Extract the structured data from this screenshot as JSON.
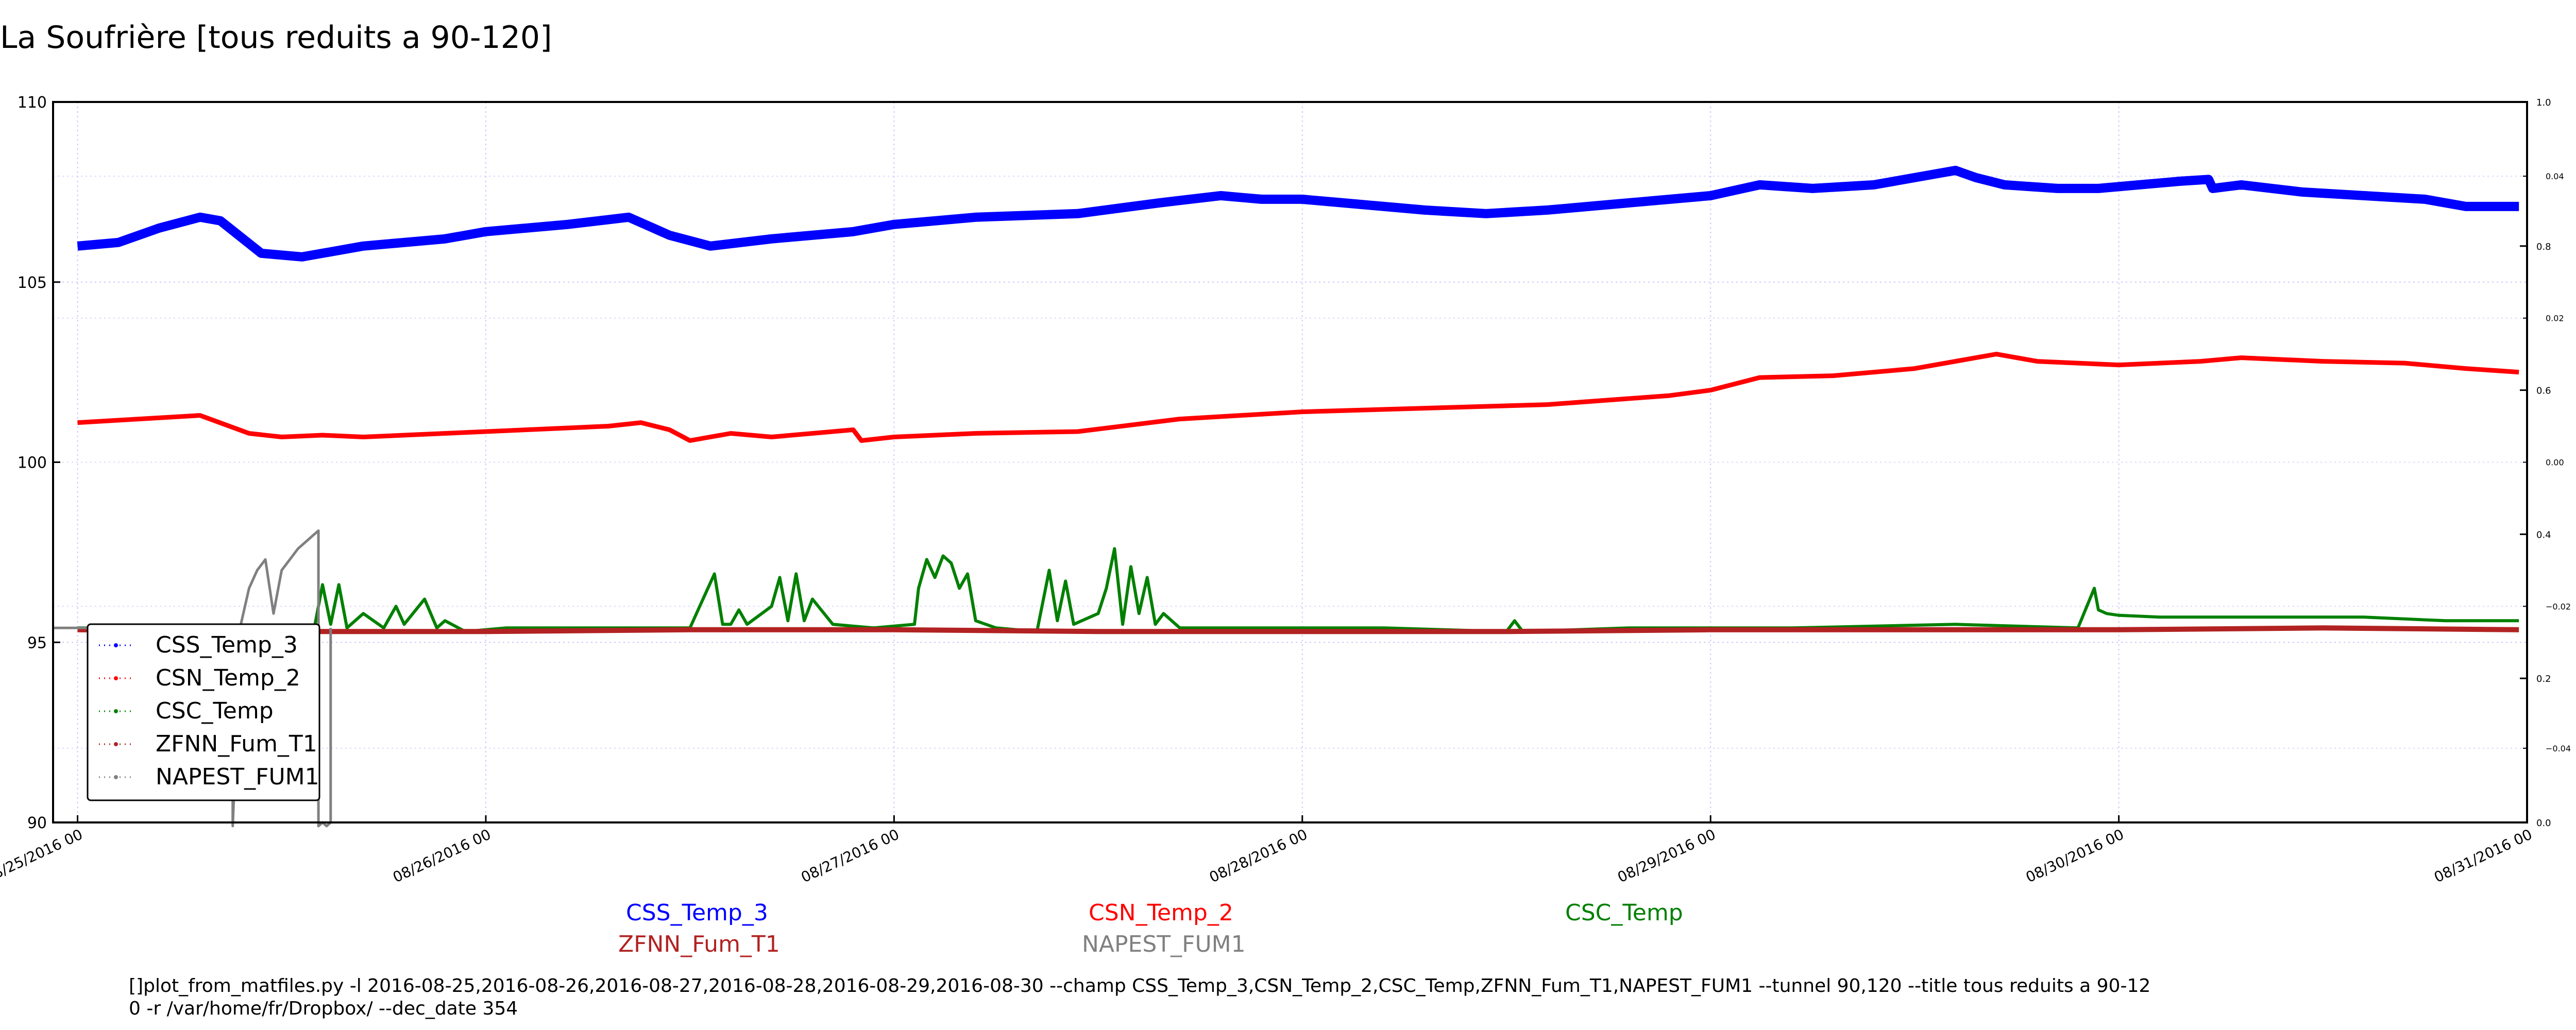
{
  "page": {
    "title": "La Soufrière [tous reduits a 90-120]",
    "command_line_1": "[]plot_from_matfiles.py -l 2016-08-25,2016-08-26,2016-08-27,2016-08-28,2016-08-29,2016-08-30 --champ CSS_Temp_3,CSN_Temp_2,CSC_Temp,ZFNN_Fum_T1,NAPEST_FUM1 --tunnel 90,120 --title tous reduits a 90-12",
    "command_line_2": "0 -r /var/home/fr/Dropbox/ --dec_date 354"
  },
  "bottom_legend": {
    "css": "CSS_Temp_3",
    "csn": "CSN_Temp_2",
    "csc": "CSC_Temp",
    "zfnn": "ZFNN_Fum_T1",
    "napest": "NAPEST_FUM1"
  },
  "chart_data": {
    "type": "line",
    "title": "La Soufrière [tous reduits a 90-120]",
    "xlabel": "",
    "ylabel": "",
    "x_unit": "days since 2016-08-25 00:00",
    "xlim": [
      -0.06,
      6.0
    ],
    "ylim": [
      90,
      110
    ],
    "y_ticks": [
      90,
      95,
      100,
      105,
      110
    ],
    "x_ticks": [
      {
        "x": 0,
        "label": "08/25/2016 00"
      },
      {
        "x": 1,
        "label": "08/26/2016 00"
      },
      {
        "x": 2,
        "label": "08/27/2016 00"
      },
      {
        "x": 3,
        "label": "08/28/2016 00"
      },
      {
        "x": 4,
        "label": "08/29/2016 00"
      },
      {
        "x": 5,
        "label": "08/30/2016 00"
      },
      {
        "x": 6,
        "label": "08/31/2016 00"
      }
    ],
    "right_axis": {
      "ylim": [
        0,
        1.0
      ],
      "major_ticks": [
        "0.0",
        "0.2",
        "0.4",
        "0.6",
        "0.8",
        "1.0"
      ],
      "minor_ticks": [
        {
          "v": 0.103,
          "label": "−0.04"
        },
        {
          "v": 0.3,
          "label": "−0.02"
        },
        {
          "v": 0.5,
          "label": "0.00"
        },
        {
          "v": 0.7,
          "label": "0.02"
        },
        {
          "v": 0.897,
          "label": "0.04"
        }
      ]
    },
    "grid": true,
    "legend": {
      "position": "lower-left",
      "entries": [
        "CSS_Temp_3",
        "CSN_Temp_2",
        "CSC_Temp",
        "ZFNN_Fum_T1",
        "NAPEST_FUM1"
      ]
    },
    "series": [
      {
        "name": "CSS_Temp_3",
        "color": "#0000ff",
        "width": 18,
        "x": [
          0.0,
          0.1,
          0.2,
          0.3,
          0.35,
          0.45,
          0.55,
          0.7,
          0.9,
          1.0,
          1.2,
          1.35,
          1.45,
          1.55,
          1.7,
          1.9,
          2.0,
          2.2,
          2.45,
          2.65,
          2.8,
          2.9,
          3.0,
          3.1,
          3.3,
          3.45,
          3.6,
          3.8,
          4.0,
          4.12,
          4.25,
          4.4,
          4.6,
          4.65,
          4.72,
          4.85,
          4.95,
          5.05,
          5.15,
          5.22,
          5.23,
          5.3,
          5.45,
          5.6,
          5.75,
          5.85,
          5.98
        ],
        "y": [
          106.0,
          106.1,
          106.5,
          106.8,
          106.7,
          105.8,
          105.7,
          106.0,
          106.2,
          106.4,
          106.6,
          106.8,
          106.3,
          106.0,
          106.2,
          106.4,
          106.6,
          106.8,
          106.9,
          107.2,
          107.4,
          107.3,
          107.3,
          107.2,
          107.0,
          106.9,
          107.0,
          107.2,
          107.4,
          107.7,
          107.6,
          107.7,
          108.1,
          107.9,
          107.7,
          107.6,
          107.6,
          107.7,
          107.8,
          107.85,
          107.6,
          107.7,
          107.5,
          107.4,
          107.3,
          107.1,
          107.1
        ]
      },
      {
        "name": "CSN_Temp_2",
        "color": "#ff0000",
        "width": 9,
        "x": [
          0.0,
          0.15,
          0.3,
          0.42,
          0.5,
          0.6,
          0.7,
          0.9,
          1.1,
          1.3,
          1.38,
          1.45,
          1.5,
          1.6,
          1.7,
          1.8,
          1.9,
          1.92,
          2.0,
          2.2,
          2.45,
          2.7,
          3.0,
          3.3,
          3.6,
          3.9,
          4.0,
          4.12,
          4.3,
          4.5,
          4.65,
          4.7,
          4.8,
          5.0,
          5.2,
          5.3,
          5.5,
          5.7,
          5.85,
          5.98
        ],
        "y": [
          101.1,
          101.2,
          101.3,
          100.8,
          100.7,
          100.75,
          100.7,
          100.8,
          100.9,
          101.0,
          101.1,
          100.9,
          100.6,
          100.8,
          100.7,
          100.8,
          100.9,
          100.6,
          100.7,
          100.8,
          100.85,
          101.2,
          101.4,
          101.5,
          101.6,
          101.85,
          102.0,
          102.35,
          102.4,
          102.6,
          102.9,
          103.0,
          102.8,
          102.7,
          102.8,
          102.9,
          102.8,
          102.75,
          102.6,
          102.5
        ]
      },
      {
        "name": "CSC_Temp",
        "color": "#008000",
        "width": 6,
        "x": [
          0.0,
          0.58,
          0.6,
          0.62,
          0.64,
          0.66,
          0.7,
          0.75,
          0.78,
          0.8,
          0.85,
          0.88,
          0.9,
          0.95,
          1.05,
          1.3,
          1.5,
          1.52,
          1.56,
          1.58,
          1.6,
          1.62,
          1.64,
          1.7,
          1.72,
          1.74,
          1.76,
          1.78,
          1.8,
          1.85,
          1.95,
          2.05,
          2.06,
          2.08,
          2.1,
          2.12,
          2.14,
          2.16,
          2.18,
          2.2,
          2.25,
          2.35,
          2.38,
          2.4,
          2.42,
          2.44,
          2.5,
          2.52,
          2.54,
          2.56,
          2.58,
          2.6,
          2.62,
          2.64,
          2.66,
          2.7,
          2.8,
          3.2,
          3.5,
          3.52,
          3.54,
          3.8,
          4.2,
          4.6,
          4.9,
          4.94,
          4.95,
          4.97,
          5.0,
          5.1,
          5.3,
          5.6,
          5.8,
          5.98
        ],
        "y": [
          95.4,
          95.4,
          96.6,
          95.5,
          96.6,
          95.4,
          95.8,
          95.4,
          96.0,
          95.5,
          96.2,
          95.4,
          95.6,
          95.3,
          95.4,
          95.4,
          95.4,
          95.9,
          96.9,
          95.5,
          95.5,
          95.9,
          95.5,
          96.0,
          96.8,
          95.6,
          96.9,
          95.6,
          96.2,
          95.5,
          95.4,
          95.5,
          96.5,
          97.3,
          96.8,
          97.4,
          97.2,
          96.5,
          96.9,
          95.6,
          95.4,
          95.3,
          97.0,
          95.6,
          96.7,
          95.5,
          95.8,
          96.5,
          97.6,
          95.5,
          97.1,
          95.8,
          96.8,
          95.5,
          95.8,
          95.4,
          95.4,
          95.4,
          95.3,
          95.6,
          95.3,
          95.4,
          95.4,
          95.5,
          95.4,
          96.5,
          95.9,
          95.8,
          95.75,
          95.7,
          95.7,
          95.7,
          95.6,
          95.6
        ]
      },
      {
        "name": "ZFNN_Fum_T1",
        "color": "#b22222",
        "width": 10,
        "x": [
          0.0,
          0.5,
          1.0,
          1.5,
          2.0,
          2.5,
          3.0,
          3.5,
          4.0,
          4.5,
          5.0,
          5.5,
          5.98
        ],
        "y": [
          95.35,
          95.3,
          95.3,
          95.35,
          95.35,
          95.3,
          95.3,
          95.3,
          95.35,
          95.35,
          95.35,
          95.4,
          95.35
        ]
      },
      {
        "name": "NAPEST_FUM1",
        "color": "#808080",
        "width": 5,
        "x": [
          -0.06,
          0.38,
          0.38,
          0.4,
          0.42,
          0.44,
          0.46,
          0.48,
          0.5,
          0.52,
          0.54,
          0.56,
          0.58,
          0.59,
          0.59,
          0.6,
          0.61,
          0.62,
          0.62
        ],
        "y": [
          95.4,
          95.4,
          89.9,
          95.5,
          96.5,
          97.0,
          97.3,
          95.8,
          97.0,
          97.3,
          97.6,
          97.8,
          98.0,
          98.1,
          89.9,
          90.0,
          89.9,
          90.0,
          95.4
        ]
      }
    ]
  }
}
